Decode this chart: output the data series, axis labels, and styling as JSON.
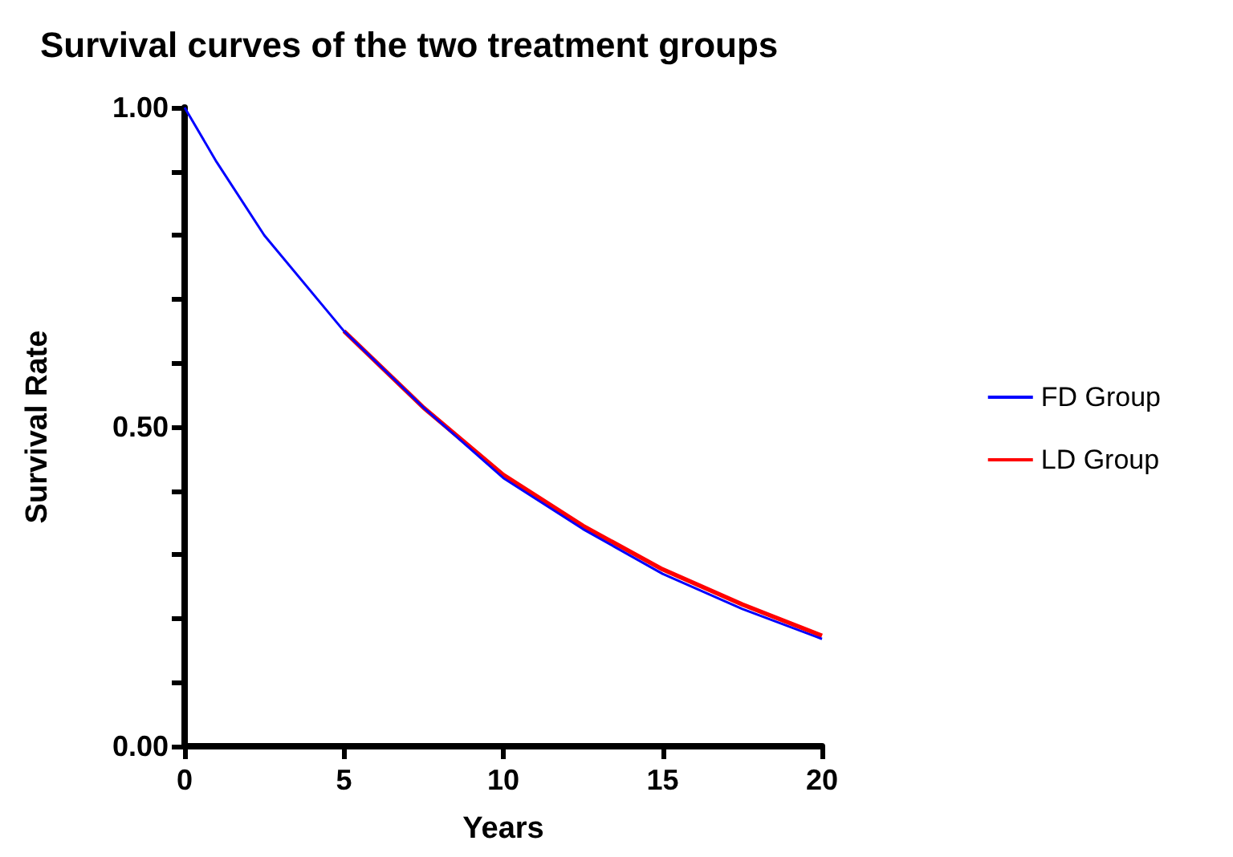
{
  "chart_data": {
    "type": "line",
    "title": "Survival curves of the two treatment groups",
    "xlabel": "Years",
    "ylabel": "Survival Rate",
    "xlim": [
      0,
      20
    ],
    "xticks": [
      0,
      5,
      10,
      15,
      20
    ],
    "ylim": [
      0,
      1
    ],
    "yticks": [
      {
        "value": 0,
        "label": "0.00"
      },
      {
        "value": 0.1,
        "label": null
      },
      {
        "value": 0.2,
        "label": null
      },
      {
        "value": 0.3,
        "label": null
      },
      {
        "value": 0.4,
        "label": null
      },
      {
        "value": 0.5,
        "label": "0.50"
      },
      {
        "value": 0.6,
        "label": null
      },
      {
        "value": 0.7,
        "label": null
      },
      {
        "value": 0.8,
        "label": null
      },
      {
        "value": 0.9,
        "label": null
      },
      {
        "value": 1,
        "label": "1.00"
      }
    ],
    "x": [
      0,
      1,
      2.5,
      5,
      7.5,
      10,
      12.5,
      15,
      17.5,
      20
    ],
    "series": [
      {
        "name": "FD Group",
        "color": "#0000ff",
        "values": [
          1,
          0.915,
          0.8,
          0.65,
          0.53,
          0.42,
          0.34,
          0.27,
          0.215,
          0.168
        ]
      },
      {
        "name": "LD Group",
        "color": "#ff0000",
        "values": [
          null,
          null,
          null,
          0.65,
          0.53,
          0.425,
          0.345,
          0.277,
          0.222,
          0.173
        ]
      }
    ],
    "legend": "right",
    "grid": false,
    "marker": "none",
    "line_style": "solid"
  }
}
